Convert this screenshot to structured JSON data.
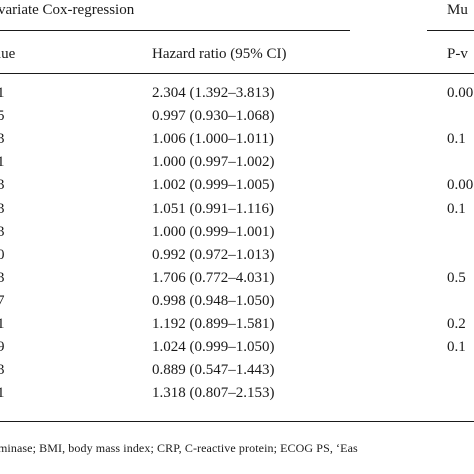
{
  "header": {
    "univariate_title": "variate Cox-regression",
    "multivariate_title": "Mu"
  },
  "subheader": {
    "pvalue_left": "lue",
    "hazard_ratio": "Hazard ratio (95% CI)",
    "pvalue_right": "P-v"
  },
  "rows": [
    {
      "p_left": "1",
      "hr": "2.304 (1.392–3.813)",
      "p_right": "0.00"
    },
    {
      "p_left": "5",
      "hr": "0.997 (0.930–1.068)",
      "p_right": ""
    },
    {
      "p_left": "3",
      "hr": "1.006 (1.000–1.011)",
      "p_right": "0.1"
    },
    {
      "p_left": "1",
      "hr": "1.000 (0.997–1.002)",
      "p_right": ""
    },
    {
      "p_left": "3",
      "hr": "1.002 (0.999–1.005)",
      "p_right": "0.00"
    },
    {
      "p_left": "3",
      "hr": "1.051 (0.991–1.116)",
      "p_right": "0.1"
    },
    {
      "p_left": "3",
      "hr": "1.000 (0.999–1.001)",
      "p_right": ""
    },
    {
      "p_left": "0",
      "hr": "0.992 (0.972–1.013)",
      "p_right": ""
    },
    {
      "p_left": "3",
      "hr": "1.706 (0.772–4.031)",
      "p_right": "0.5"
    },
    {
      "p_left": "7",
      "hr": "0.998 (0.948–1.050)",
      "p_right": ""
    },
    {
      "p_left": "1",
      "hr": "1.192 (0.899–1.581)",
      "p_right": "0.2"
    },
    {
      "p_left": "9",
      "hr": "1.024 (0.999–1.050)",
      "p_right": "0.1"
    },
    {
      "p_left": "3",
      "hr": "0.889 (0.547–1.443)",
      "p_right": ""
    },
    {
      "p_left": "1",
      "hr": "1.318 (0.807–2.153)",
      "p_right": ""
    }
  ],
  "footnote": "minase; BMI, body mass index; CRP, C-reactive protein; ECOG PS, ‘Eas"
}
